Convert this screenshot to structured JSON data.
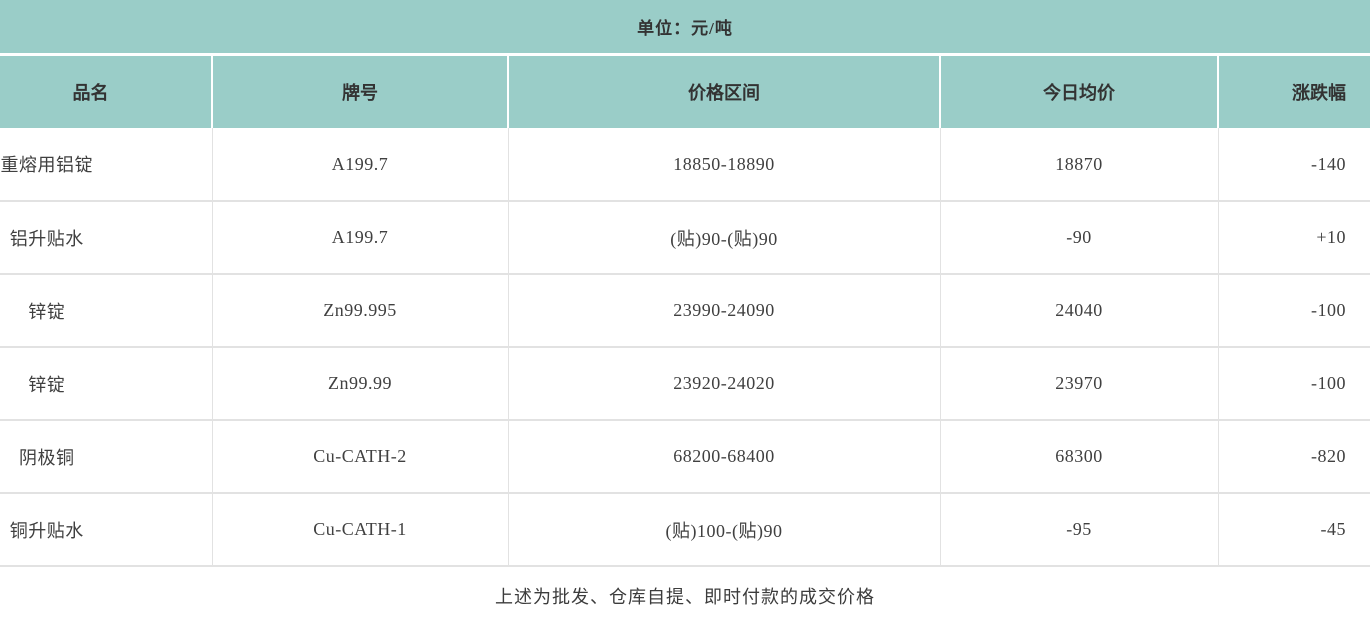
{
  "unit_banner": {
    "label": "单位：元/吨"
  },
  "colors": {
    "banner_bg": "#9acdc8",
    "header_bg": "#9acdc8",
    "body_bg": "#ffffff",
    "text": "#3c3c3c",
    "header_text": "#333333",
    "row_border": "#e2e2e2",
    "header_divider": "#ffffff"
  },
  "footer": {
    "note": "上述为批发、仓库自提、即时付款的成交价格"
  },
  "chart_data": {
    "type": "table",
    "title": "单位：元/吨",
    "columns": [
      {
        "key": "name",
        "label": "品名"
      },
      {
        "key": "grade",
        "label": "牌号"
      },
      {
        "key": "range",
        "label": "价格区间"
      },
      {
        "key": "avg",
        "label": "今日均价"
      },
      {
        "key": "change",
        "label": "涨跌幅"
      }
    ],
    "rows": [
      {
        "name": "重熔用铝锭",
        "grade": "A199.7",
        "range": "18850-18890",
        "avg": "18870",
        "change": "-140"
      },
      {
        "name": "铝升贴水",
        "grade": "A199.7",
        "range": "(贴)90-(贴)90",
        "avg": "-90",
        "change": "+10"
      },
      {
        "name": "锌锭",
        "grade": "Zn99.995",
        "range": "23990-24090",
        "avg": "24040",
        "change": "-100"
      },
      {
        "name": "锌锭",
        "grade": "Zn99.99",
        "range": "23920-24020",
        "avg": "23970",
        "change": "-100"
      },
      {
        "name": "阴极铜",
        "grade": "Cu-CATH-2",
        "range": "68200-68400",
        "avg": "68300",
        "change": "-820"
      },
      {
        "name": "铜升贴水",
        "grade": "Cu-CATH-1",
        "range": "(贴)100-(贴)90",
        "avg": "-95",
        "change": "-45"
      }
    ],
    "footnote": "上述为批发、仓库自提、即时付款的成交价格"
  }
}
